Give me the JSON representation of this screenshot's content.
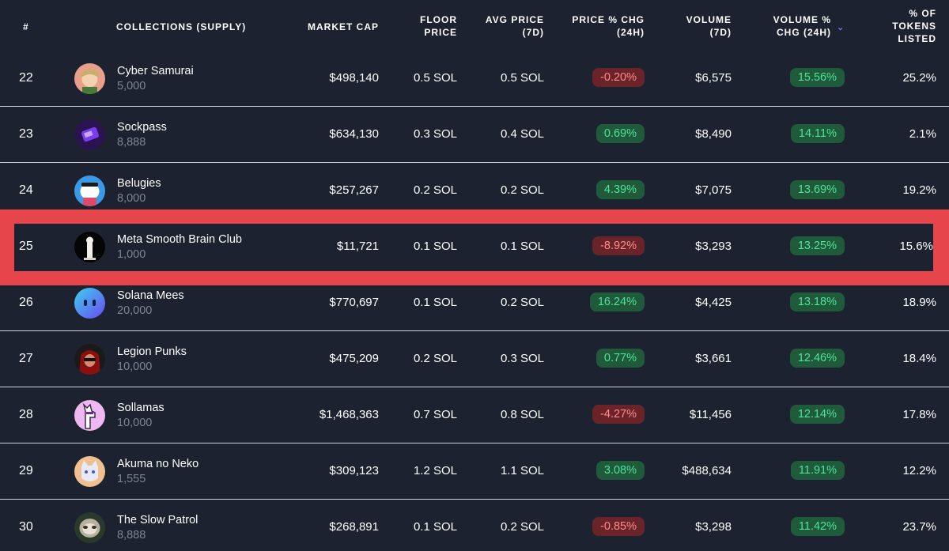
{
  "header": {
    "rank": "#",
    "collection": "COLLECTIONS (SUPPLY)",
    "market_cap": "MARKET CAP",
    "floor_1": "FLOOR",
    "floor_2": "PRICE",
    "avg_1": "AVG PRICE",
    "avg_2": "(7D)",
    "pchg_1": "PRICE % CHG",
    "pchg_2": "(24H)",
    "vol_1": "VOLUME",
    "vol_2": "(7D)",
    "vchg_1": "VOLUME %",
    "vchg_2": "CHG (24H)",
    "list_1": "% OF",
    "list_2": "TOKENS",
    "list_3": "LISTED"
  },
  "rows": [
    {
      "rank": "22",
      "name": "Cyber Samurai",
      "supply": "5,000",
      "market_cap": "$498,140",
      "floor": "0.5 SOL",
      "avg": "0.5 SOL",
      "price_chg": "-0.20%",
      "volume": "$6,575",
      "vol_chg": "15.56%",
      "listed": "25.2%"
    },
    {
      "rank": "23",
      "name": "Sockpass",
      "supply": "8,888",
      "market_cap": "$634,130",
      "floor": "0.3 SOL",
      "avg": "0.4 SOL",
      "price_chg": "0.69%",
      "volume": "$8,490",
      "vol_chg": "14.11%",
      "listed": "2.1%"
    },
    {
      "rank": "24",
      "name": "Belugies",
      "supply": "8,000",
      "market_cap": "$257,267",
      "floor": "0.2 SOL",
      "avg": "0.2 SOL",
      "price_chg": "4.39%",
      "volume": "$7,075",
      "vol_chg": "13.69%",
      "listed": "19.2%"
    },
    {
      "rank": "25",
      "name": "Meta Smooth Brain Club",
      "supply": "1,000",
      "market_cap": "$11,721",
      "floor": "0.1 SOL",
      "avg": "0.1 SOL",
      "price_chg": "-8.92%",
      "volume": "$3,293",
      "vol_chg": "13.25%",
      "listed": "15.6%"
    },
    {
      "rank": "26",
      "name": "Solana Mees",
      "supply": "20,000",
      "market_cap": "$770,697",
      "floor": "0.1 SOL",
      "avg": "0.2 SOL",
      "price_chg": "16.24%",
      "volume": "$4,425",
      "vol_chg": "13.18%",
      "listed": "18.9%"
    },
    {
      "rank": "27",
      "name": "Legion Punks",
      "supply": "10,000",
      "market_cap": "$475,209",
      "floor": "0.2 SOL",
      "avg": "0.3 SOL",
      "price_chg": "0.77%",
      "volume": "$3,661",
      "vol_chg": "12.46%",
      "listed": "18.4%"
    },
    {
      "rank": "28",
      "name": "Sollamas",
      "supply": "10,000",
      "market_cap": "$1,468,363",
      "floor": "0.7 SOL",
      "avg": "0.8 SOL",
      "price_chg": "-4.27%",
      "volume": "$11,456",
      "vol_chg": "12.14%",
      "listed": "17.8%"
    },
    {
      "rank": "29",
      "name": "Akuma no Neko",
      "supply": "1,555",
      "market_cap": "$309,123",
      "floor": "1.2 SOL",
      "avg": "1.1 SOL",
      "price_chg": "3.08%",
      "volume": "$488,634",
      "vol_chg": "11.91%",
      "listed": "12.2%"
    },
    {
      "rank": "30",
      "name": "The Slow Patrol",
      "supply": "8,888",
      "market_cap": "$268,891",
      "floor": "0.1 SOL",
      "avg": "0.2 SOL",
      "price_chg": "-0.85%",
      "volume": "$3,298",
      "vol_chg": "11.42%",
      "listed": "23.7%"
    }
  ],
  "colors": {
    "background": "#1c2230",
    "positive_bg": "#1f5a3a",
    "positive_text": "#4fe39a",
    "negative_bg": "#6a2429",
    "negative_text": "#ff8c8c",
    "highlight": "#e5454b",
    "sort_icon": "#6a6ff0"
  }
}
